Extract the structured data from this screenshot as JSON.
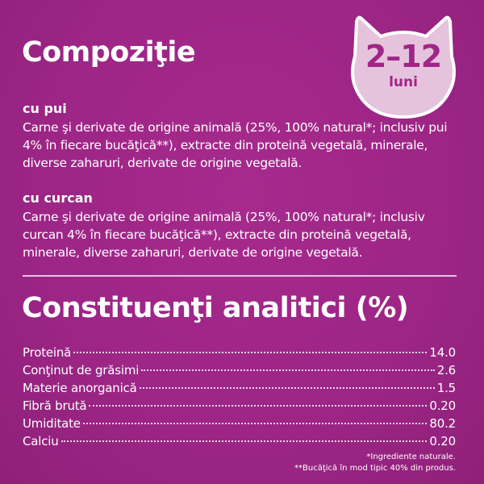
{
  "composition": {
    "title": "Compoziţie",
    "sections": [
      {
        "heading": "cu pui",
        "text": "Carne şi derivate de origine animală (25%, 100% natural*; inclusiv pui 4% în fiecare bucăţică**), extracte din proteină vegetală, minerale, diverse zaharuri, derivate de origine vegetală."
      },
      {
        "heading": "cu curcan",
        "text": "Carne şi derivate de origine animală (25%, 100% natural*; inclusiv curcan 4% în fiecare bucăţică**), extracte din proteină vegetală, minerale, diverse zaharuri, derivate de origine vegetală."
      }
    ]
  },
  "badge": {
    "age": "2–12",
    "unit": "luni",
    "icon": "cat-head-icon"
  },
  "analytics": {
    "title": "Constituenţi analitici (%)",
    "rows": [
      {
        "label": "Proteină",
        "value": "14.0"
      },
      {
        "label": "Conţinut de grăsimi",
        "value": "2.6"
      },
      {
        "label": "Materie anorganică",
        "value": "1.5"
      },
      {
        "label": "Fibră brută",
        "value": "0.20"
      },
      {
        "label": "Umiditate",
        "value": "80.2"
      },
      {
        "label": "Calciu",
        "value": "0.20"
      }
    ]
  },
  "footnotes": [
    "*Ingrediente naturale.",
    "**Bucăţică în mod tipic 40% din produs."
  ],
  "colors": {
    "background": "#9f2686",
    "badge": "#e6c3dd"
  }
}
